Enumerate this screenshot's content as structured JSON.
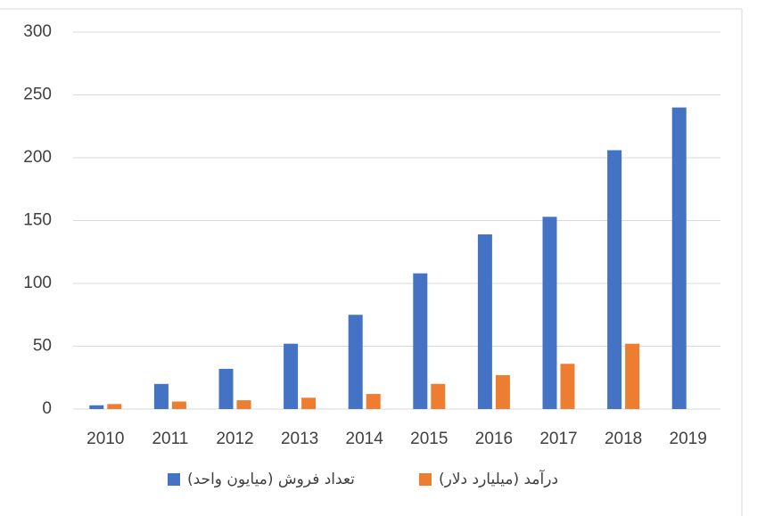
{
  "chart_data": {
    "type": "bar",
    "categories": [
      "2010",
      "2011",
      "2012",
      "2013",
      "2014",
      "2015",
      "2016",
      "2017",
      "2018",
      "2019"
    ],
    "series": [
      {
        "name": "تعداد فروش (میایون واحد)",
        "color": "#4472c4",
        "values": [
          3,
          20,
          32,
          52,
          75,
          108,
          139,
          153,
          206,
          240
        ]
      },
      {
        "name": "درآمد (میلیارد دلار)",
        "color": "#ed7d31",
        "values": [
          4,
          6,
          7,
          9,
          12,
          20,
          27,
          36,
          52,
          null
        ]
      }
    ],
    "ylim": [
      0,
      300
    ],
    "yticks": [
      0,
      50,
      100,
      150,
      200,
      250,
      300
    ],
    "grid": true
  }
}
